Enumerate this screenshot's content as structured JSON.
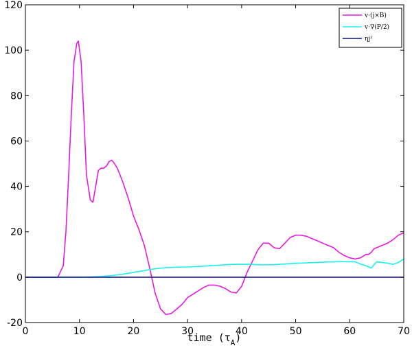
{
  "chart_data": {
    "type": "line",
    "title": "",
    "xlabel": "time (τ",
    "xlabel_sub": "A",
    "xlabel_close": ")",
    "ylabel": "",
    "xlim": [
      0,
      70
    ],
    "ylim": [
      -20,
      120
    ],
    "xticks": [
      0,
      10,
      20,
      30,
      40,
      50,
      60,
      70
    ],
    "yticks": [
      -20,
      0,
      20,
      40,
      60,
      80,
      100,
      120
    ],
    "grid": false,
    "legend_position": "top-right",
    "series": [
      {
        "name": "v·(j×B)",
        "color": "#e619e0",
        "x": [
          0,
          6,
          7,
          7.5,
          8,
          8.5,
          9,
          9.5,
          9.8,
          10.3,
          10.8,
          11.3,
          12,
          12.5,
          13,
          13.5,
          14,
          14.5,
          15,
          15.5,
          16,
          16.5,
          17,
          17.5,
          18,
          19,
          20,
          21,
          22,
          23,
          24,
          25,
          26,
          27,
          28,
          29,
          30,
          31,
          32,
          33,
          34,
          35,
          36,
          37,
          38,
          39,
          40,
          41,
          42,
          43,
          44,
          45,
          46,
          47,
          48,
          49,
          50,
          51,
          52,
          53,
          54,
          55,
          56,
          57,
          58,
          59,
          60,
          61,
          62,
          63,
          63.5,
          64,
          64.5,
          65,
          66,
          67,
          68,
          69,
          70
        ],
        "y": [
          0,
          0,
          5,
          20,
          45,
          72,
          95,
          103,
          104,
          95,
          72,
          45,
          34,
          33,
          40,
          47,
          48,
          48,
          49,
          51,
          51.5,
          50,
          48,
          45,
          42,
          35,
          27,
          21,
          14,
          4,
          -7,
          -14,
          -16.5,
          -16,
          -14,
          -12,
          -9,
          -7.5,
          -6,
          -4.5,
          -3.5,
          -3.5,
          -4,
          -5,
          -6.5,
          -7,
          -4,
          2,
          7,
          12,
          15,
          15,
          13,
          12.5,
          15,
          17.5,
          18.5,
          18.5,
          18,
          17,
          16,
          15,
          14,
          13,
          11,
          9.5,
          8.5,
          8,
          8.5,
          10,
          10,
          11,
          12.5,
          13,
          14,
          15,
          16.5,
          18.5,
          19.5
        ]
      },
      {
        "name": "v·∇(P/2)",
        "color": "#19f0f0",
        "x": [
          0,
          10,
          12,
          14,
          16,
          18,
          20,
          22,
          24,
          26,
          28,
          30,
          32,
          34,
          36,
          38,
          40,
          42,
          44,
          46,
          48,
          50,
          52,
          54,
          56,
          58,
          60,
          61,
          62,
          63,
          64,
          64.5,
          65,
          66,
          67,
          68,
          69,
          70
        ],
        "y": [
          0,
          0,
          0.1,
          0.3,
          0.7,
          1.3,
          2.1,
          2.9,
          3.7,
          4.2,
          4.4,
          4.5,
          4.7,
          5,
          5.3,
          5.6,
          5.7,
          5.6,
          5.4,
          5.5,
          5.8,
          6.1,
          6.3,
          6.5,
          6.7,
          6.8,
          6.8,
          6.8,
          5.8,
          5,
          4,
          5.5,
          6.8,
          6.5,
          6.2,
          5.6,
          6.5,
          8
        ]
      },
      {
        "name": "ηj²",
        "color": "#0c0c8c",
        "x": [
          0,
          70
        ],
        "y": [
          0,
          0
        ]
      }
    ]
  }
}
